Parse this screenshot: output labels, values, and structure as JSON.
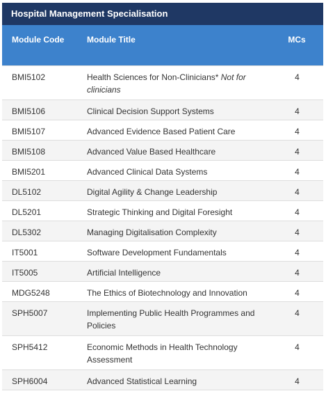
{
  "title": "Hospital Management Specialisation",
  "columns": {
    "code": "Module Code",
    "title": "Module Title",
    "mcs": "MCs"
  },
  "rows": [
    {
      "code": "BMI5102",
      "title": "Health Sciences for Non-Clinicians*",
      "note": "Not for clinicians",
      "mcs": "4"
    },
    {
      "code": "BMI5106",
      "title": "Clinical Decision Support Systems",
      "note": "",
      "mcs": "4"
    },
    {
      "code": "BMI5107",
      "title": "Advanced Evidence Based Patient Care",
      "note": "",
      "mcs": "4"
    },
    {
      "code": "BMI5108",
      "title": "Advanced Value Based Healthcare",
      "note": "",
      "mcs": "4"
    },
    {
      "code": "BMI5201",
      "title": "Advanced Clinical Data Systems",
      "note": "",
      "mcs": "4"
    },
    {
      "code": "DL5102",
      "title": "Digital Agility & Change Leadership",
      "note": "",
      "mcs": "4"
    },
    {
      "code": "DL5201",
      "title": "Strategic Thinking and Digital Foresight",
      "note": "",
      "mcs": "4"
    },
    {
      "code": "DL5302",
      "title": "Managing Digitalisation Complexity",
      "note": "",
      "mcs": "4"
    },
    {
      "code": "IT5001",
      "title": "Software Development Fundamentals",
      "note": "",
      "mcs": "4"
    },
    {
      "code": "IT5005",
      "title": "Artificial Intelligence",
      "note": "",
      "mcs": "4"
    },
    {
      "code": "MDG5248",
      "title": "The Ethics of Biotechnology and Innovation",
      "note": "",
      "mcs": "4"
    },
    {
      "code": "SPH5007",
      "title": "Implementing Public Health Programmes and Policies",
      "note": "",
      "mcs": "4"
    },
    {
      "code": "SPH5412",
      "title": "Economic Methods in Health Technology Assessment",
      "note": "",
      "mcs": "4"
    },
    {
      "code": "SPH6004",
      "title": "Advanced Statistical Learning",
      "note": "",
      "mcs": "4"
    }
  ]
}
